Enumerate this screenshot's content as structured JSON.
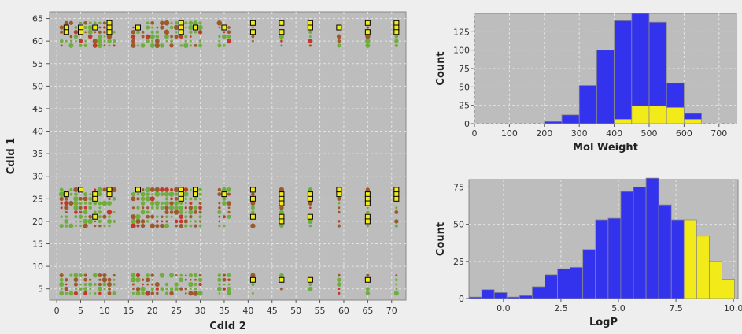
{
  "chart_data": [
    {
      "type": "scatter",
      "xlabel": "CdId 2",
      "ylabel": "CdId 1",
      "xlim": [
        -1.5,
        73
      ],
      "ylim": [
        2.5,
        66.5
      ],
      "x_ticks": [
        0,
        5,
        10,
        15,
        20,
        25,
        30,
        35,
        40,
        45,
        50,
        55,
        60,
        65,
        70
      ],
      "y_ticks": [
        5,
        10,
        15,
        20,
        25,
        30,
        35,
        40,
        45,
        50,
        55,
        60,
        65
      ],
      "grid": true,
      "colors": {
        "plot_bg": "#bdbdbd",
        "grid": "#e4e4e4",
        "dot_green": "#6fae3c",
        "dot_brown": "#9c5a2a",
        "dot_red": "#c0392b",
        "highlight": "#f2ea19"
      },
      "column_groups": [
        [
          1,
          2,
          3,
          4,
          5,
          6,
          7,
          8,
          9,
          10,
          11,
          12
        ],
        [
          16,
          17,
          18,
          19,
          20,
          21,
          22,
          23,
          24,
          25,
          26,
          27,
          28,
          29,
          30
        ],
        [
          34,
          35,
          36
        ],
        [
          41
        ],
        [
          47
        ],
        [
          53
        ],
        [
          59
        ],
        [
          65
        ],
        [
          71
        ]
      ],
      "row_bands": [
        [
          59,
          64
        ],
        [
          19,
          27
        ],
        [
          4,
          8
        ]
      ],
      "highlighted": [
        [
          2,
          63
        ],
        [
          2,
          62
        ],
        [
          5,
          63
        ],
        [
          5,
          62
        ],
        [
          8,
          63
        ],
        [
          11,
          64
        ],
        [
          11,
          63
        ],
        [
          11,
          62
        ],
        [
          17,
          63
        ],
        [
          26,
          64
        ],
        [
          26,
          63
        ],
        [
          26,
          62
        ],
        [
          29,
          63
        ],
        [
          35,
          63
        ],
        [
          41,
          64
        ],
        [
          41,
          62
        ],
        [
          47,
          64
        ],
        [
          47,
          62
        ],
        [
          53,
          64
        ],
        [
          53,
          63
        ],
        [
          59,
          63
        ],
        [
          65,
          64
        ],
        [
          65,
          62
        ],
        [
          71,
          64
        ],
        [
          71,
          63
        ],
        [
          71,
          62
        ],
        [
          2,
          26
        ],
        [
          5,
          27
        ],
        [
          8,
          26
        ],
        [
          8,
          25
        ],
        [
          11,
          27
        ],
        [
          11,
          26
        ],
        [
          17,
          27
        ],
        [
          26,
          27
        ],
        [
          26,
          26
        ],
        [
          26,
          25
        ],
        [
          29,
          27
        ],
        [
          29,
          26
        ],
        [
          35,
          26
        ],
        [
          41,
          27
        ],
        [
          41,
          25
        ],
        [
          47,
          26
        ],
        [
          47,
          25
        ],
        [
          47,
          24
        ],
        [
          53,
          26
        ],
        [
          53,
          25
        ],
        [
          59,
          27
        ],
        [
          59,
          26
        ],
        [
          65,
          26
        ],
        [
          65,
          25
        ],
        [
          65,
          24
        ],
        [
          71,
          27
        ],
        [
          71,
          26
        ],
        [
          71,
          25
        ],
        [
          8,
          21
        ],
        [
          41,
          21
        ],
        [
          47,
          21
        ],
        [
          47,
          20
        ],
        [
          53,
          21
        ],
        [
          65,
          21
        ],
        [
          65,
          20
        ],
        [
          41,
          7
        ],
        [
          47,
          7
        ],
        [
          53,
          7
        ],
        [
          65,
          7
        ]
      ]
    },
    {
      "type": "bar",
      "xlabel": "Mol Weight",
      "ylabel": "Count",
      "xlim": [
        0,
        750
      ],
      "ylim": [
        0,
        150
      ],
      "x_ticks": [
        0,
        100,
        200,
        300,
        400,
        500,
        600,
        700
      ],
      "y_ticks": [
        0,
        25,
        50,
        75,
        100,
        125
      ],
      "bin_width": 50,
      "bin_starts": [
        200,
        250,
        300,
        350,
        400,
        450,
        500,
        550,
        600
      ],
      "series": [
        {
          "color": "#3333ee",
          "values": [
            3,
            12,
            52,
            100,
            140,
            150,
            138,
            55,
            14
          ]
        },
        {
          "color": "#f2ea19",
          "values": [
            0,
            0,
            0,
            0,
            6,
            24,
            24,
            22,
            6
          ]
        }
      ]
    },
    {
      "type": "bar",
      "xlabel": "LogP",
      "ylabel": "Count",
      "xlim": [
        -1.5,
        10.2
      ],
      "ylim": [
        0,
        80
      ],
      "x_ticks": [
        0.0,
        2.5,
        5.0,
        7.5,
        10.0
      ],
      "x_tick_labels": [
        "0.0",
        "2.5",
        "5.0",
        "7.5",
        "10.0"
      ],
      "y_ticks": [
        0,
        25,
        50,
        75
      ],
      "bin_width": 0.55,
      "bin_starts": [
        -1.5,
        -0.95,
        -0.4,
        0.15,
        0.7,
        1.25,
        1.8,
        2.35,
        2.9,
        3.45,
        4.0,
        4.55,
        5.1,
        5.65,
        6.2,
        6.75,
        7.3,
        7.85,
        8.4,
        8.95,
        9.5
      ],
      "series": [
        {
          "color": "#3333ee",
          "values": [
            1,
            6,
            4,
            1,
            2,
            8,
            16,
            20,
            21,
            33,
            53,
            54,
            72,
            75,
            81,
            63,
            53,
            0,
            0,
            0,
            0
          ]
        },
        {
          "color": "#f2ea19",
          "values": [
            0,
            0,
            0,
            0,
            0,
            0,
            0,
            0,
            0,
            0,
            0,
            0,
            0,
            0,
            0,
            0,
            0,
            53,
            42,
            25,
            13
          ]
        }
      ]
    }
  ]
}
